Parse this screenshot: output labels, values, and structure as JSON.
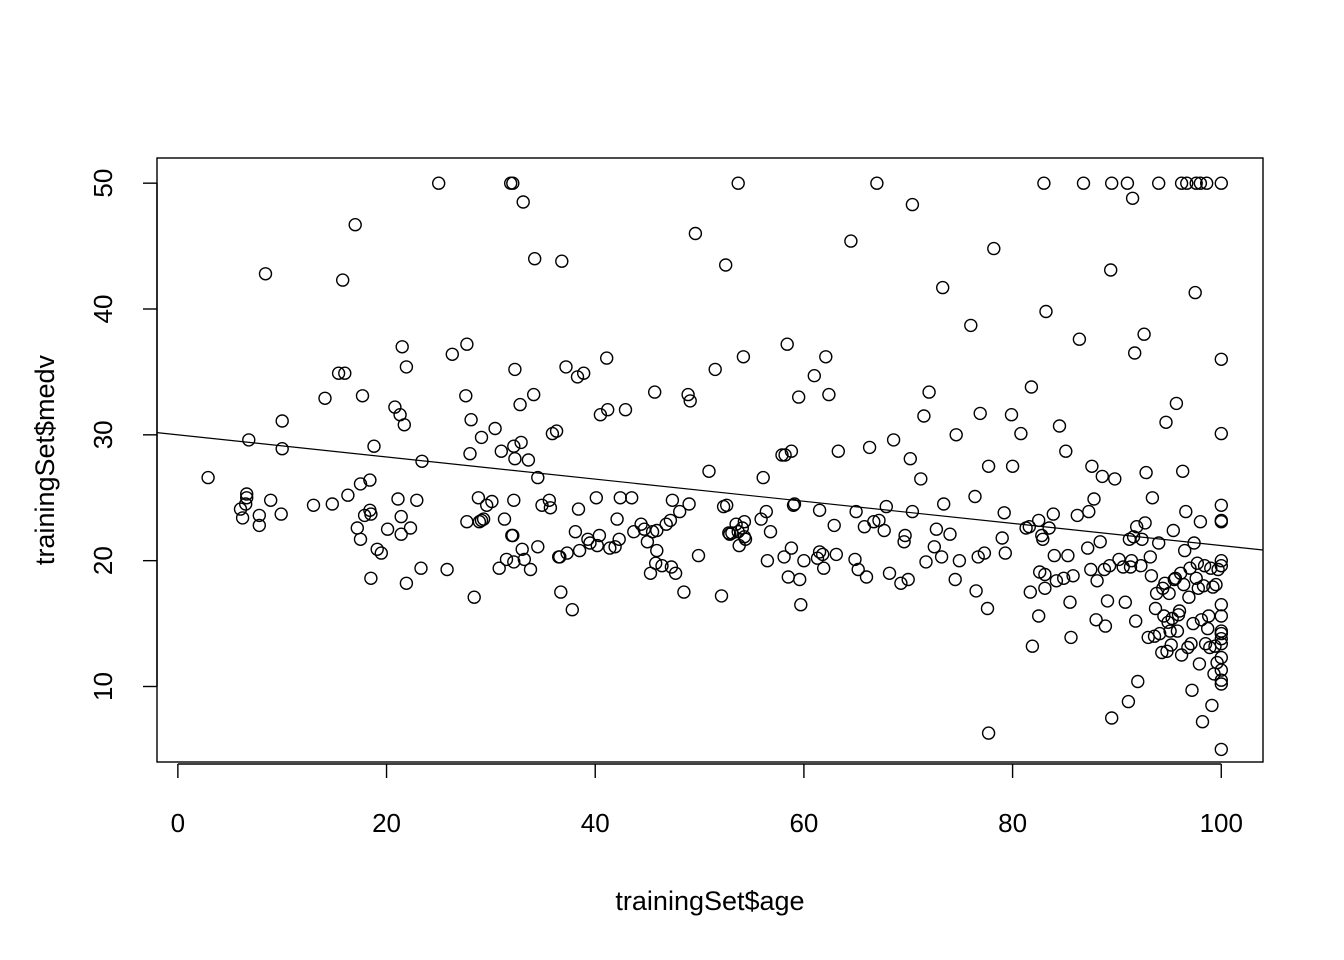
{
  "chart_data": {
    "type": "scatter",
    "title": "",
    "xlabel": "trainingSet$age",
    "ylabel": "trainingSet$medv",
    "xlim": [
      -2,
      104
    ],
    "ylim": [
      4,
      52
    ],
    "x_ticks": [
      0,
      20,
      40,
      60,
      80,
      100
    ],
    "y_ticks": [
      10,
      20,
      30,
      40,
      50
    ],
    "grid": false,
    "legend": "none",
    "point_style": "open-circle",
    "regression_line": {
      "intercept": 30.0,
      "slope": -0.088
    },
    "points": [
      [
        2.9,
        26.6
      ],
      [
        6.0,
        24.1
      ],
      [
        6.2,
        23.4
      ],
      [
        6.5,
        24.5
      ],
      [
        6.6,
        25.0
      ],
      [
        6.6,
        25.3
      ],
      [
        6.8,
        29.6
      ],
      [
        7.8,
        23.6
      ],
      [
        7.8,
        22.8
      ],
      [
        8.4,
        42.8
      ],
      [
        8.9,
        24.8
      ],
      [
        9.9,
        23.7
      ],
      [
        10.0,
        31.1
      ],
      [
        10.0,
        28.9
      ],
      [
        13.0,
        24.4
      ],
      [
        14.1,
        32.9
      ],
      [
        14.8,
        24.5
      ],
      [
        15.4,
        34.9
      ],
      [
        15.8,
        42.3
      ],
      [
        16.0,
        34.9
      ],
      [
        16.3,
        25.2
      ],
      [
        17.0,
        46.7
      ],
      [
        17.2,
        22.6
      ],
      [
        17.5,
        26.1
      ],
      [
        17.5,
        21.7
      ],
      [
        17.7,
        33.1
      ],
      [
        17.9,
        23.6
      ],
      [
        18.4,
        26.4
      ],
      [
        18.4,
        24.0
      ],
      [
        18.5,
        23.7
      ],
      [
        18.5,
        18.6
      ],
      [
        18.8,
        29.1
      ],
      [
        19.1,
        20.9
      ],
      [
        19.5,
        20.6
      ],
      [
        20.1,
        22.5
      ],
      [
        20.8,
        32.2
      ],
      [
        21.1,
        24.9
      ],
      [
        21.3,
        31.6
      ],
      [
        21.4,
        23.5
      ],
      [
        21.4,
        22.1
      ],
      [
        21.5,
        37.0
      ],
      [
        21.7,
        30.8
      ],
      [
        21.9,
        35.4
      ],
      [
        21.9,
        18.2
      ],
      [
        22.3,
        22.6
      ],
      [
        22.9,
        24.8
      ],
      [
        23.3,
        19.4
      ],
      [
        23.4,
        27.9
      ],
      [
        25.0,
        50.0
      ],
      [
        25.8,
        19.3
      ],
      [
        26.3,
        36.4
      ],
      [
        27.6,
        33.1
      ],
      [
        27.7,
        37.2
      ],
      [
        27.7,
        23.1
      ],
      [
        28.0,
        28.5
      ],
      [
        28.1,
        31.2
      ],
      [
        28.4,
        17.1
      ],
      [
        28.8,
        25.0
      ],
      [
        28.9,
        23.1
      ],
      [
        29.1,
        29.8
      ],
      [
        29.1,
        23.2
      ],
      [
        29.3,
        23.3
      ],
      [
        29.6,
        24.4
      ],
      [
        30.1,
        24.7
      ],
      [
        30.4,
        30.5
      ],
      [
        30.8,
        19.4
      ],
      [
        31.0,
        28.7
      ],
      [
        31.3,
        23.3
      ],
      [
        31.5,
        20.1
      ],
      [
        31.9,
        50.0
      ],
      [
        32.1,
        50.0
      ],
      [
        32.0,
        22.0
      ],
      [
        32.1,
        22.0
      ],
      [
        32.2,
        29.1
      ],
      [
        32.2,
        24.8
      ],
      [
        32.2,
        19.9
      ],
      [
        32.3,
        35.2
      ],
      [
        32.3,
        28.1
      ],
      [
        32.8,
        32.4
      ],
      [
        32.9,
        29.4
      ],
      [
        33.0,
        20.9
      ],
      [
        33.1,
        48.5
      ],
      [
        33.2,
        20.1
      ],
      [
        33.6,
        28.0
      ],
      [
        33.8,
        19.3
      ],
      [
        34.1,
        33.2
      ],
      [
        34.2,
        44.0
      ],
      [
        34.5,
        26.6
      ],
      [
        34.5,
        21.1
      ],
      [
        34.9,
        24.4
      ],
      [
        35.6,
        24.8
      ],
      [
        35.7,
        24.2
      ],
      [
        35.9,
        30.1
      ],
      [
        36.3,
        30.3
      ],
      [
        36.5,
        20.3
      ],
      [
        36.6,
        20.3
      ],
      [
        36.7,
        17.5
      ],
      [
        36.8,
        43.8
      ],
      [
        37.2,
        35.4
      ],
      [
        37.3,
        20.6
      ],
      [
        37.8,
        16.1
      ],
      [
        38.1,
        22.3
      ],
      [
        38.3,
        34.6
      ],
      [
        38.4,
        24.1
      ],
      [
        38.5,
        20.8
      ],
      [
        38.9,
        34.9
      ],
      [
        39.3,
        21.7
      ],
      [
        39.5,
        21.4
      ],
      [
        40.1,
        25.0
      ],
      [
        40.2,
        21.2
      ],
      [
        40.4,
        22.0
      ],
      [
        40.5,
        31.6
      ],
      [
        41.1,
        36.1
      ],
      [
        41.2,
        32.0
      ],
      [
        41.4,
        21.0
      ],
      [
        41.9,
        21.1
      ],
      [
        42.1,
        23.3
      ],
      [
        42.3,
        21.7
      ],
      [
        42.4,
        25.0
      ],
      [
        42.9,
        32.0
      ],
      [
        43.5,
        25.0
      ],
      [
        43.7,
        22.3
      ],
      [
        44.4,
        22.9
      ],
      [
        44.7,
        22.5
      ],
      [
        45.0,
        21.5
      ],
      [
        45.3,
        19.0
      ],
      [
        45.5,
        22.3
      ],
      [
        45.7,
        33.4
      ],
      [
        45.8,
        19.8
      ],
      [
        45.9,
        20.8
      ],
      [
        45.9,
        22.4
      ],
      [
        46.4,
        19.6
      ],
      [
        46.8,
        22.9
      ],
      [
        47.2,
        23.2
      ],
      [
        47.3,
        19.5
      ],
      [
        47.4,
        24.8
      ],
      [
        47.7,
        19.0
      ],
      [
        48.1,
        23.9
      ],
      [
        48.5,
        17.5
      ],
      [
        48.9,
        33.2
      ],
      [
        49.0,
        24.5
      ],
      [
        49.1,
        32.7
      ],
      [
        49.6,
        46.0
      ],
      [
        49.9,
        20.4
      ],
      [
        50.9,
        27.1
      ],
      [
        51.5,
        35.2
      ],
      [
        52.1,
        17.2
      ],
      [
        52.3,
        24.3
      ],
      [
        52.5,
        43.5
      ],
      [
        52.6,
        24.4
      ],
      [
        52.8,
        22.2
      ],
      [
        52.9,
        22.1
      ],
      [
        53.1,
        22.2
      ],
      [
        53.5,
        22.9
      ],
      [
        53.7,
        22.3
      ],
      [
        53.7,
        50.0
      ],
      [
        53.8,
        21.2
      ],
      [
        54.1,
        22.6
      ],
      [
        54.2,
        36.2
      ],
      [
        54.3,
        23.1
      ],
      [
        54.3,
        21.9
      ],
      [
        54.4,
        21.7
      ],
      [
        55.9,
        23.3
      ],
      [
        56.1,
        26.6
      ],
      [
        56.4,
        23.9
      ],
      [
        56.5,
        20.0
      ],
      [
        56.8,
        22.3
      ],
      [
        57.9,
        28.4
      ],
      [
        58.1,
        20.3
      ],
      [
        58.2,
        28.4
      ],
      [
        58.4,
        37.2
      ],
      [
        58.5,
        18.7
      ],
      [
        58.8,
        28.7
      ],
      [
        58.8,
        21.0
      ],
      [
        59.0,
        24.4
      ],
      [
        59.1,
        24.5
      ],
      [
        59.5,
        33.0
      ],
      [
        59.6,
        18.5
      ],
      [
        59.7,
        16.5
      ],
      [
        60.0,
        20.0
      ],
      [
        61.0,
        34.7
      ],
      [
        61.3,
        20.2
      ],
      [
        61.5,
        24.0
      ],
      [
        61.5,
        20.7
      ],
      [
        61.8,
        20.5
      ],
      [
        61.9,
        19.4
      ],
      [
        62.1,
        36.2
      ],
      [
        62.4,
        33.2
      ],
      [
        62.9,
        22.8
      ],
      [
        63.1,
        20.5
      ],
      [
        63.3,
        28.7
      ],
      [
        64.5,
        45.4
      ],
      [
        64.9,
        20.1
      ],
      [
        65.0,
        23.9
      ],
      [
        65.2,
        19.3
      ],
      [
        65.8,
        22.7
      ],
      [
        66.0,
        18.7
      ],
      [
        66.3,
        29.0
      ],
      [
        66.7,
        23.1
      ],
      [
        67.0,
        50.0
      ],
      [
        67.2,
        23.2
      ],
      [
        67.7,
        22.4
      ],
      [
        67.9,
        24.3
      ],
      [
        68.2,
        19.0
      ],
      [
        68.6,
        29.6
      ],
      [
        69.3,
        18.2
      ],
      [
        69.6,
        21.5
      ],
      [
        69.7,
        22.0
      ],
      [
        70.0,
        18.5
      ],
      [
        70.2,
        28.1
      ],
      [
        70.4,
        48.3
      ],
      [
        70.4,
        23.9
      ],
      [
        71.2,
        26.5
      ],
      [
        71.5,
        31.5
      ],
      [
        71.7,
        19.9
      ],
      [
        72.0,
        33.4
      ],
      [
        72.5,
        21.1
      ],
      [
        72.7,
        22.5
      ],
      [
        73.2,
        20.3
      ],
      [
        73.3,
        41.7
      ],
      [
        73.4,
        24.5
      ],
      [
        74.0,
        22.1
      ],
      [
        74.5,
        18.5
      ],
      [
        74.6,
        30.0
      ],
      [
        74.9,
        20.0
      ],
      [
        76.0,
        38.7
      ],
      [
        76.4,
        25.1
      ],
      [
        76.5,
        17.6
      ],
      [
        76.7,
        20.3
      ],
      [
        76.9,
        31.7
      ],
      [
        77.3,
        20.6
      ],
      [
        77.6,
        16.2
      ],
      [
        77.7,
        6.3
      ],
      [
        77.7,
        27.5
      ],
      [
        78.2,
        44.8
      ],
      [
        79.0,
        21.8
      ],
      [
        79.2,
        23.8
      ],
      [
        79.3,
        20.6
      ],
      [
        79.9,
        31.6
      ],
      [
        80.0,
        27.5
      ],
      [
        80.8,
        30.1
      ],
      [
        81.3,
        22.6
      ],
      [
        81.6,
        22.7
      ],
      [
        81.7,
        17.5
      ],
      [
        81.8,
        33.8
      ],
      [
        81.9,
        13.2
      ],
      [
        82.5,
        23.2
      ],
      [
        82.5,
        15.6
      ],
      [
        82.6,
        19.1
      ],
      [
        82.8,
        22.0
      ],
      [
        82.9,
        21.7
      ],
      [
        83.0,
        50.0
      ],
      [
        83.1,
        18.9
      ],
      [
        83.1,
        17.8
      ],
      [
        83.2,
        39.8
      ],
      [
        83.5,
        22.6
      ],
      [
        83.9,
        23.7
      ],
      [
        84.0,
        20.4
      ],
      [
        84.2,
        18.4
      ],
      [
        84.5,
        30.7
      ],
      [
        84.9,
        18.6
      ],
      [
        85.1,
        28.7
      ],
      [
        85.3,
        20.4
      ],
      [
        85.5,
        16.7
      ],
      [
        85.6,
        13.9
      ],
      [
        85.8,
        18.8
      ],
      [
        86.2,
        23.6
      ],
      [
        86.4,
        37.6
      ],
      [
        86.8,
        50.0
      ],
      [
        87.2,
        21.0
      ],
      [
        87.3,
        23.9
      ],
      [
        87.5,
        19.3
      ],
      [
        87.6,
        27.5
      ],
      [
        87.8,
        24.9
      ],
      [
        88.0,
        15.3
      ],
      [
        88.1,
        18.4
      ],
      [
        88.4,
        21.5
      ],
      [
        88.6,
        26.7
      ],
      [
        88.8,
        19.3
      ],
      [
        88.9,
        14.8
      ],
      [
        89.1,
        16.8
      ],
      [
        89.3,
        19.6
      ],
      [
        89.4,
        43.1
      ],
      [
        89.5,
        7.5
      ],
      [
        89.5,
        50.0
      ],
      [
        89.8,
        26.5
      ],
      [
        90.2,
        20.1
      ],
      [
        90.6,
        19.5
      ],
      [
        90.8,
        16.7
      ],
      [
        91.0,
        50.0
      ],
      [
        91.1,
        8.8
      ],
      [
        91.2,
        21.7
      ],
      [
        91.3,
        19.5
      ],
      [
        91.4,
        20.0
      ],
      [
        91.5,
        48.8
      ],
      [
        91.6,
        21.9
      ],
      [
        91.7,
        36.5
      ],
      [
        91.8,
        15.2
      ],
      [
        91.9,
        22.7
      ],
      [
        92.0,
        10.4
      ],
      [
        92.3,
        19.6
      ],
      [
        92.4,
        21.7
      ],
      [
        92.6,
        38.0
      ],
      [
        92.7,
        23.0
      ],
      [
        92.8,
        27.0
      ],
      [
        93.0,
        13.9
      ],
      [
        93.2,
        20.3
      ],
      [
        93.3,
        18.8
      ],
      [
        93.4,
        25.0
      ],
      [
        93.6,
        14.0
      ],
      [
        93.7,
        16.2
      ],
      [
        93.8,
        17.4
      ],
      [
        94.0,
        50.0
      ],
      [
        94.0,
        21.4
      ],
      [
        94.1,
        14.2
      ],
      [
        94.3,
        12.7
      ],
      [
        94.4,
        17.8
      ],
      [
        94.5,
        15.6
      ],
      [
        94.6,
        18.2
      ],
      [
        94.7,
        31.0
      ],
      [
        94.8,
        12.8
      ],
      [
        94.9,
        15.1
      ],
      [
        95.0,
        17.4
      ],
      [
        95.1,
        14.4
      ],
      [
        95.2,
        13.3
      ],
      [
        95.3,
        15.4
      ],
      [
        95.4,
        22.4
      ],
      [
        95.5,
        18.5
      ],
      [
        95.6,
        18.6
      ],
      [
        95.7,
        32.5
      ],
      [
        95.8,
        14.4
      ],
      [
        95.9,
        15.7
      ],
      [
        96.0,
        16.0
      ],
      [
        96.1,
        19.0
      ],
      [
        96.2,
        12.5
      ],
      [
        96.2,
        50.0
      ],
      [
        96.3,
        27.1
      ],
      [
        96.4,
        18.1
      ],
      [
        96.5,
        20.8
      ],
      [
        96.6,
        23.9
      ],
      [
        96.7,
        50.0
      ],
      [
        96.8,
        13.1
      ],
      [
        96.9,
        17.1
      ],
      [
        97.0,
        19.4
      ],
      [
        97.1,
        13.4
      ],
      [
        97.2,
        9.7
      ],
      [
        97.3,
        15.0
      ],
      [
        97.4,
        21.4
      ],
      [
        97.5,
        41.3
      ],
      [
        97.6,
        18.6
      ],
      [
        97.6,
        50.0
      ],
      [
        97.7,
        19.8
      ],
      [
        97.8,
        17.8
      ],
      [
        97.9,
        11.8
      ],
      [
        98.0,
        23.1
      ],
      [
        98.0,
        50.0
      ],
      [
        98.1,
        15.3
      ],
      [
        98.2,
        7.2
      ],
      [
        98.3,
        18.0
      ],
      [
        98.4,
        19.6
      ],
      [
        98.5,
        13.4
      ],
      [
        98.6,
        50.0
      ],
      [
        98.7,
        14.6
      ],
      [
        98.8,
        15.6
      ],
      [
        98.9,
        13.1
      ],
      [
        99.0,
        19.4
      ],
      [
        99.1,
        8.5
      ],
      [
        99.2,
        17.9
      ],
      [
        99.3,
        11.0
      ],
      [
        99.4,
        13.2
      ],
      [
        99.5,
        18.1
      ],
      [
        99.6,
        11.9
      ],
      [
        99.7,
        19.3
      ],
      [
        100.0,
        50.0
      ],
      [
        100.0,
        36.0
      ],
      [
        100.0,
        30.1
      ],
      [
        100.0,
        24.4
      ],
      [
        100.0,
        23.2
      ],
      [
        100.0,
        23.1
      ],
      [
        100.0,
        20.0
      ],
      [
        100.0,
        19.6
      ],
      [
        100.0,
        16.5
      ],
      [
        100.0,
        15.6
      ],
      [
        100.0,
        14.4
      ],
      [
        100.0,
        14.2
      ],
      [
        100.0,
        13.8
      ],
      [
        100.0,
        13.4
      ],
      [
        100.0,
        12.3
      ],
      [
        100.0,
        11.3
      ],
      [
        100.0,
        10.5
      ],
      [
        100.0,
        10.2
      ],
      [
        100.0,
        5.0
      ]
    ]
  }
}
